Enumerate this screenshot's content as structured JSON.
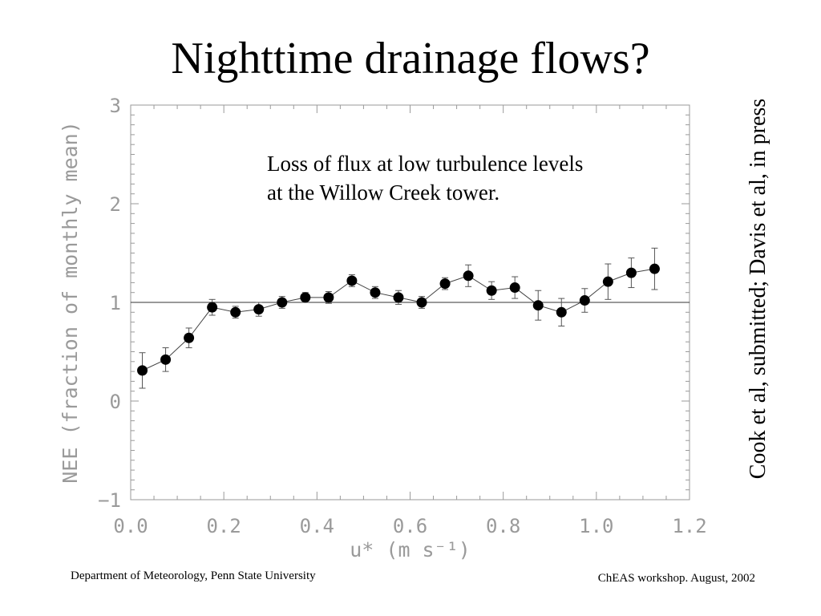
{
  "slide": {
    "title": "Nighttime drainage flows?",
    "citation": "Cook et al, submitted; Davis et al, in press",
    "annotation_line1": "Loss of flux at low turbulence levels",
    "annotation_line2": "at the Willow Creek tower.",
    "footer_left": "Department of Meteorology, Penn State University",
    "footer_right": "ChEAS workshop. August, 2002"
  },
  "chart_data": {
    "type": "scatter",
    "xlabel": "u* (m s⁻¹)",
    "ylabel": "NEE (fraction of monthly mean)",
    "xlim": [
      0.0,
      1.2
    ],
    "ylim": [
      -1,
      3
    ],
    "x_ticks": [
      0.0,
      0.2,
      0.4,
      0.6,
      0.8,
      1.0,
      1.2
    ],
    "x_tick_labels": [
      "0.0",
      "0.2",
      "0.4",
      "0.6",
      "0.8",
      "1.0",
      "1.2"
    ],
    "y_ticks": [
      -1,
      0,
      1,
      2,
      3
    ],
    "y_tick_labels": [
      "−1",
      "0",
      "1",
      "2",
      "3"
    ],
    "reference_line": 1,
    "grid": false,
    "axis_color": "#9a9a9a",
    "marker_color": "#000000",
    "series": [
      {
        "x": [
          0.025,
          0.075,
          0.125,
          0.175,
          0.225,
          0.275,
          0.325,
          0.375,
          0.425,
          0.475,
          0.525,
          0.575,
          0.625,
          0.675,
          0.725,
          0.775,
          0.825,
          0.875,
          0.925,
          0.975,
          1.025,
          1.075,
          1.125
        ],
        "y": [
          0.31,
          0.42,
          0.64,
          0.95,
          0.9,
          0.93,
          1.0,
          1.05,
          1.05,
          1.22,
          1.1,
          1.05,
          1.0,
          1.19,
          1.27,
          1.12,
          1.15,
          0.97,
          0.9,
          1.02,
          1.21,
          1.3,
          1.34
        ],
        "error": [
          0.18,
          0.12,
          0.1,
          0.08,
          0.06,
          0.07,
          0.06,
          0.05,
          0.06,
          0.06,
          0.06,
          0.07,
          0.06,
          0.06,
          0.11,
          0.09,
          0.11,
          0.15,
          0.14,
          0.12,
          0.18,
          0.15,
          0.21
        ]
      }
    ]
  }
}
